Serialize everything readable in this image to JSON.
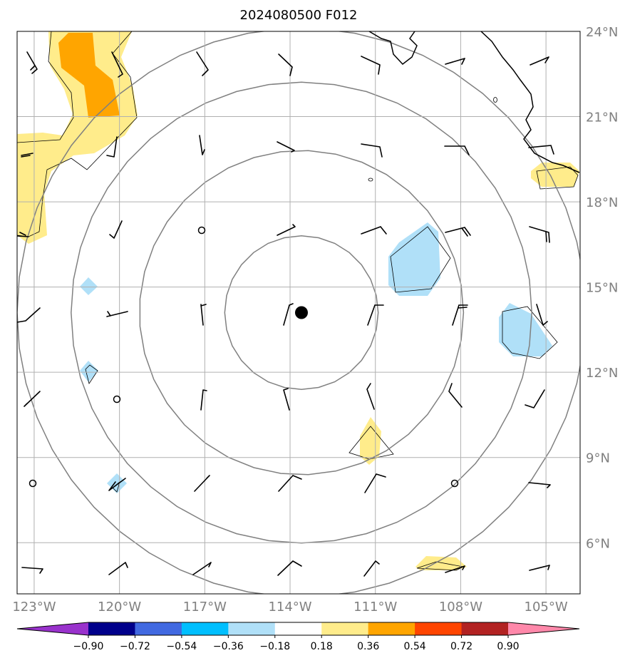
{
  "title": "2024080500 F012",
  "map": {
    "lon_min": -123.6,
    "lon_max": -103.8,
    "lat_min": 4.2,
    "lat_max": 24.0,
    "lon_ticks": [
      {
        "value": -123,
        "label": "123°W"
      },
      {
        "value": -120,
        "label": "120°W"
      },
      {
        "value": -117,
        "label": "117°W"
      },
      {
        "value": -114,
        "label": "114°W"
      },
      {
        "value": -111,
        "label": "111°W"
      },
      {
        "value": -108,
        "label": "108°W"
      },
      {
        "value": -105,
        "label": "105°W"
      }
    ],
    "lat_ticks": [
      {
        "value": 24,
        "label": "24°N"
      },
      {
        "value": 21,
        "label": "21°N"
      },
      {
        "value": 18,
        "label": "18°N"
      },
      {
        "value": 15,
        "label": "15°N"
      },
      {
        "value": 12,
        "label": "12°N"
      },
      {
        "value": 9,
        "label": "9°N"
      },
      {
        "value": 6,
        "label": "6°N"
      }
    ],
    "center": {
      "lon": -113.6,
      "lat": 14.1
    },
    "range_rings_deg": [
      2.7,
      5.7,
      8.1,
      10.0
    ]
  },
  "colorbar": {
    "ticks": [
      "−0.90",
      "−0.72",
      "−0.54",
      "−0.36",
      "−0.18",
      "0.18",
      "0.36",
      "0.54",
      "0.72",
      "0.90"
    ],
    "colors": [
      "#9932cc",
      "#00008b",
      "#4169e1",
      "#00bfff",
      "#b0e0f8",
      "#ffffff",
      "#ffec8b",
      "#ffa500",
      "#ff4500",
      "#b22222",
      "#ff88aa"
    ]
  }
}
